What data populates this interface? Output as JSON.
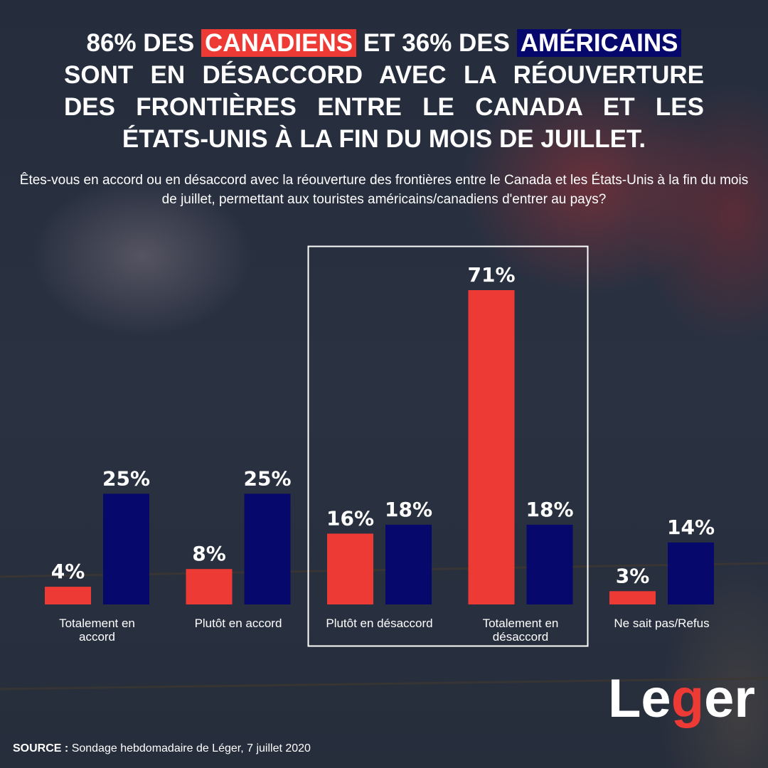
{
  "title": {
    "line1_a": "86% DES",
    "line1_highlight_red": "CANADIENS",
    "line1_b": "ET 36% DES",
    "line1_highlight_blue": "AMÉRICAINS",
    "line2": "SONT EN DÉSACCORD AVEC LA RÉOUVERTURE",
    "line3": "DES FRONTIÈRES ENTRE LE CANADA ET LES",
    "line4": "ÉTATS-UNIS À LA FIN DU MOIS DE JUILLET."
  },
  "question": "Êtes-vous en accord ou en désaccord avec la réouverture des frontières entre le Canada et les États-Unis à la fin du mois de juillet, permettant aux touristes américains/canadiens d'entrer au pays?",
  "chart_data": {
    "type": "bar",
    "categories": [
      "Totalement en accord",
      "Plutôt en accord",
      "Plutôt en désaccord",
      "Totalement en désaccord",
      "Ne sait pas/Refus"
    ],
    "series": [
      {
        "values": [
          4,
          8,
          16,
          71,
          3
        ],
        "color": "#ee3a35"
      },
      {
        "values": [
          25,
          25,
          18,
          18,
          14
        ],
        "color": "#07086b"
      }
    ],
    "value_suffix": "%",
    "ylim": [
      0,
      75
    ],
    "grid": false,
    "highlighted_categories": [
      "Plutôt en désaccord",
      "Totalement en désaccord"
    ]
  },
  "source": {
    "label": "SOURCE :",
    "text": "Sondage hebdomadaire de Léger, 7 juillet 2020"
  },
  "logo": {
    "text": "Léger",
    "accent": "#ee3a35"
  }
}
